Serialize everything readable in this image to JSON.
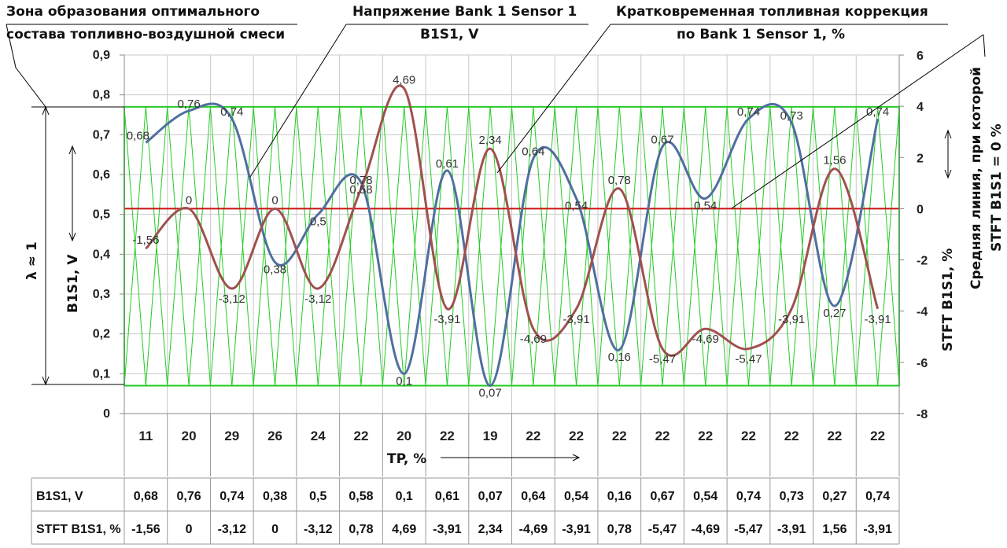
{
  "annotations": {
    "zone_line1": "Зона образования оптимального",
    "zone_line2": "состава топливно-воздушной смеси",
    "voltage_line1": "Напряжение Bank 1 Sensor 1",
    "voltage_line2": "B1S1, V",
    "stft_line1": "Кратковременная топливная коррекция",
    "stft_line2": "по Bank 1 Sensor 1, %",
    "midline_line1": "Средняя линия, при которой",
    "midline_line2": "STFT B1S1 = 0 %",
    "lambda": "λ ≈ 1"
  },
  "chart_data": {
    "type": "line",
    "xlabel": "TP, %",
    "ylabel": "B1S1, V",
    "y2label": "STFT B1S1, %",
    "ylim": [
      0,
      0.9
    ],
    "y2lim": [
      -8,
      6
    ],
    "yticks": [
      "0",
      "0,1",
      "0,2",
      "0,3",
      "0,4",
      "0,5",
      "0,6",
      "0,7",
      "0,8",
      "0,9"
    ],
    "y2ticks": [
      "-8",
      "-6",
      "-4",
      "-2",
      "0",
      "2",
      "4",
      "6"
    ],
    "categories": [
      "11",
      "20",
      "29",
      "26",
      "24",
      "22",
      "20",
      "22",
      "19",
      "22",
      "22",
      "22",
      "22",
      "22",
      "22",
      "22",
      "22",
      "22"
    ],
    "series": [
      {
        "name": "B1S1, V",
        "axis": "left",
        "color": "#4f6f9f",
        "values": [
          0.68,
          0.76,
          0.74,
          0.38,
          0.5,
          0.58,
          0.1,
          0.61,
          0.07,
          0.64,
          0.54,
          0.16,
          0.67,
          0.54,
          0.74,
          0.73,
          0.27,
          0.74
        ],
        "labels": [
          "0,68",
          "0,76",
          "0,74",
          "0,38",
          "0,5",
          "0,58",
          "0,1",
          "0,61",
          "0,07",
          "0,64",
          "0,54",
          "0,16",
          "0,67",
          "0,54",
          "0,74",
          "0,73",
          "0,27",
          "0,74"
        ]
      },
      {
        "name": "STFT B1S1, %",
        "axis": "right",
        "color": "#a0504f",
        "values": [
          -1.56,
          0,
          -3.12,
          0,
          -3.12,
          0.78,
          4.69,
          -3.91,
          2.34,
          -4.69,
          -3.91,
          0.78,
          -5.47,
          -4.69,
          -5.47,
          -3.91,
          1.56,
          -3.91
        ],
        "labels": [
          "-1,56",
          "0",
          "-3,12",
          "0",
          "-3,12",
          "0,78",
          "4,69",
          "-3,91",
          "2,34",
          "-4,69",
          "-3,91",
          "0,78",
          "-5,47",
          "-4,69",
          "-5,47",
          "-3,91",
          "1,56",
          "-3,91"
        ]
      }
    ],
    "optimal_zone": {
      "from": 0.07,
      "to": 0.77,
      "color": "#22cc22"
    },
    "midline": {
      "value": 0,
      "axis": "right",
      "color": "#cc1111"
    },
    "grid": true
  },
  "table": {
    "rows": [
      {
        "label": "B1S1, V",
        "values": [
          "0,68",
          "0,76",
          "0,74",
          "0,38",
          "0,5",
          "0,58",
          "0,1",
          "0,61",
          "0,07",
          "0,64",
          "0,54",
          "0,16",
          "0,67",
          "0,54",
          "0,74",
          "0,73",
          "0,27",
          "0,74"
        ]
      },
      {
        "label": "STFT B1S1, %",
        "values": [
          "-1,56",
          "0",
          "-3,12",
          "0",
          "-3,12",
          "0,78",
          "4,69",
          "-3,91",
          "2,34",
          "-4,69",
          "-3,91",
          "0,78",
          "-5,47",
          "-4,69",
          "-5,47",
          "-3,91",
          "1,56",
          "-3,91"
        ]
      }
    ]
  }
}
